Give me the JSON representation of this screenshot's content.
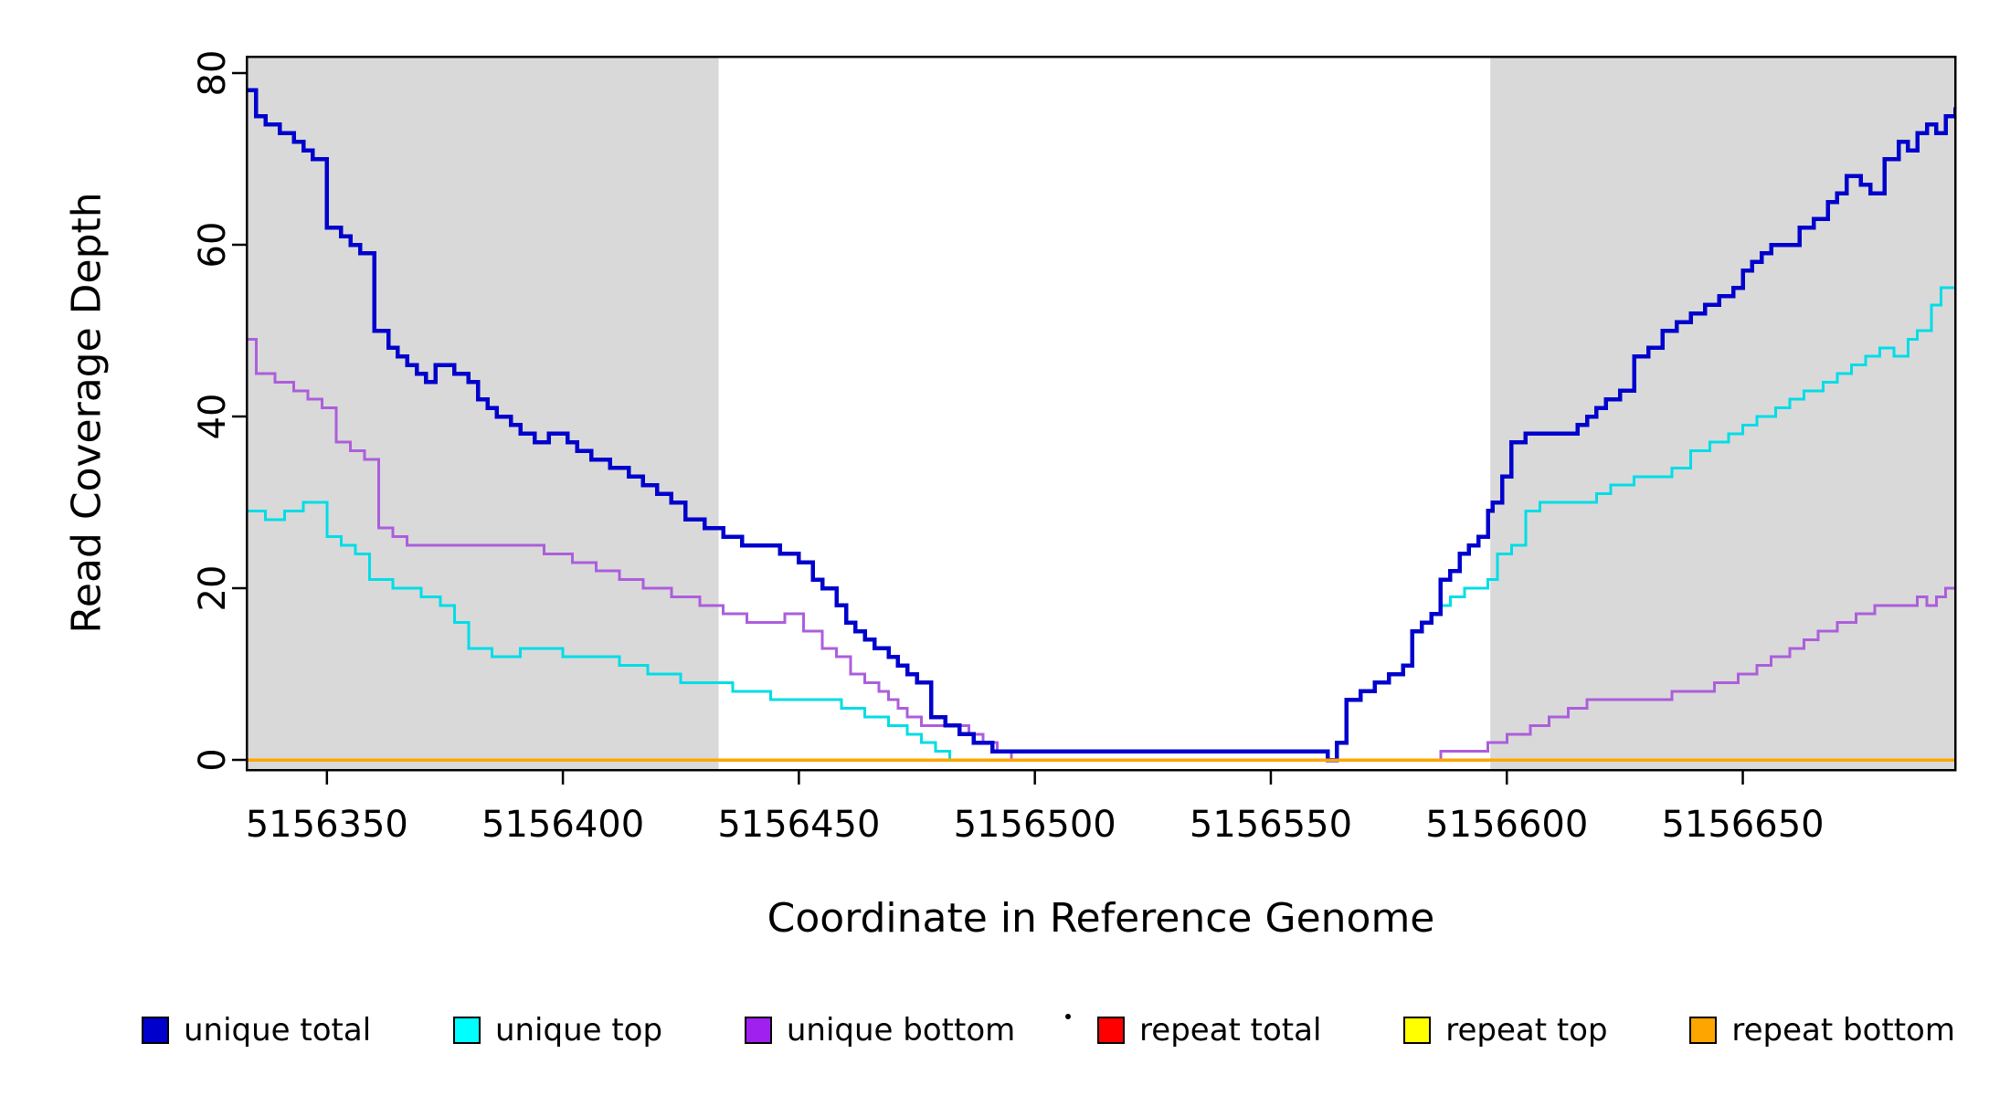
{
  "figure": {
    "background": "#FFFFFF",
    "shaded_color": "#D9D9D9",
    "box_color": "#000000",
    "stray_mark": "."
  },
  "axes": {
    "x": {
      "label": "Coordinate in Reference Genome",
      "ticks": [
        5156350,
        5156400,
        5156450,
        5156500,
        5156550,
        5156600,
        5156650
      ]
    },
    "y": {
      "label": "Read Coverage Depth",
      "ticks": [
        0,
        20,
        40,
        60,
        80
      ]
    }
  },
  "chart_data": {
    "type": "line",
    "step": true,
    "title": "",
    "xlabel": "Coordinate in Reference Genome",
    "ylabel": "Read Coverage Depth",
    "xlim": [
      5156333,
      5156695
    ],
    "ylim": [
      0,
      80
    ],
    "grid": false,
    "legend_position": "bottom",
    "shaded_regions": [
      {
        "from": 5156333,
        "to": 5156433
      },
      {
        "from": 5156596.5,
        "to": 5156695
      }
    ],
    "draw_order": [
      "repeat total",
      "repeat top",
      "unique bottom",
      "unique top",
      "unique total",
      "repeat bottom"
    ],
    "series": [
      {
        "name": "unique total",
        "color": "#0000CD",
        "width": 4.5,
        "points": [
          [
            5156333,
            78
          ],
          [
            5156335,
            75
          ],
          [
            5156337,
            74
          ],
          [
            5156340,
            73
          ],
          [
            5156343,
            72
          ],
          [
            5156345,
            71
          ],
          [
            5156347,
            70
          ],
          [
            5156350,
            62
          ],
          [
            5156353,
            61
          ],
          [
            5156355,
            60
          ],
          [
            5156357,
            59
          ],
          [
            5156360,
            50
          ],
          [
            5156363,
            48
          ],
          [
            5156365,
            47
          ],
          [
            5156367,
            46
          ],
          [
            5156369,
            45
          ],
          [
            5156371,
            44
          ],
          [
            5156373,
            46
          ],
          [
            5156377,
            45
          ],
          [
            5156380,
            44
          ],
          [
            5156382,
            42
          ],
          [
            5156384,
            41
          ],
          [
            5156386,
            40
          ],
          [
            5156389,
            39
          ],
          [
            5156391,
            38
          ],
          [
            5156394,
            37
          ],
          [
            5156397,
            38
          ],
          [
            5156401,
            37
          ],
          [
            5156403,
            36
          ],
          [
            5156406,
            35
          ],
          [
            5156410,
            34
          ],
          [
            5156414,
            33
          ],
          [
            5156417,
            32
          ],
          [
            5156420,
            31
          ],
          [
            5156423,
            30
          ],
          [
            5156426,
            28
          ],
          [
            5156430,
            27
          ],
          [
            5156434,
            26
          ],
          [
            5156438,
            25
          ],
          [
            5156446,
            24
          ],
          [
            5156450,
            23
          ],
          [
            5156453,
            21
          ],
          [
            5156455,
            20
          ],
          [
            5156458,
            18
          ],
          [
            5156460,
            16
          ],
          [
            5156462,
            15
          ],
          [
            5156464,
            14
          ],
          [
            5156466,
            13
          ],
          [
            5156469,
            12
          ],
          [
            5156471,
            11
          ],
          [
            5156473,
            10
          ],
          [
            5156475,
            9
          ],
          [
            5156478,
            5
          ],
          [
            5156481,
            4
          ],
          [
            5156484,
            3
          ],
          [
            5156487,
            2
          ],
          [
            5156491,
            1
          ],
          [
            5156562,
            0
          ],
          [
            5156564,
            2
          ],
          [
            5156566,
            7
          ],
          [
            5156569,
            8
          ],
          [
            5156572,
            9
          ],
          [
            5156575,
            10
          ],
          [
            5156578,
            11
          ],
          [
            5156580,
            15
          ],
          [
            5156582,
            16
          ],
          [
            5156584,
            17
          ],
          [
            5156586,
            21
          ],
          [
            5156588,
            22
          ],
          [
            5156590,
            24
          ],
          [
            5156592,
            25
          ],
          [
            5156594,
            26
          ],
          [
            5156596,
            29
          ],
          [
            5156597,
            30
          ],
          [
            5156599,
            33
          ],
          [
            5156601,
            37
          ],
          [
            5156604,
            38
          ],
          [
            5156615,
            39
          ],
          [
            5156617,
            40
          ],
          [
            5156619,
            41
          ],
          [
            5156621,
            42
          ],
          [
            5156624,
            43
          ],
          [
            5156627,
            47
          ],
          [
            5156630,
            48
          ],
          [
            5156633,
            50
          ],
          [
            5156636,
            51
          ],
          [
            5156639,
            52
          ],
          [
            5156642,
            53
          ],
          [
            5156645,
            54
          ],
          [
            5156648,
            55
          ],
          [
            5156650,
            57
          ],
          [
            5156652,
            58
          ],
          [
            5156654,
            59
          ],
          [
            5156656,
            60
          ],
          [
            5156662,
            62
          ],
          [
            5156665,
            63
          ],
          [
            5156668,
            65
          ],
          [
            5156670,
            66
          ],
          [
            5156672,
            68
          ],
          [
            5156675,
            67
          ],
          [
            5156677,
            66
          ],
          [
            5156680,
            70
          ],
          [
            5156683,
            72
          ],
          [
            5156685,
            71
          ],
          [
            5156687,
            73
          ],
          [
            5156689,
            74
          ],
          [
            5156691,
            73
          ],
          [
            5156693,
            75
          ],
          [
            5156695,
            76
          ]
        ]
      },
      {
        "name": "unique top",
        "color": "#00DDE6",
        "width": 3,
        "points": [
          [
            5156333,
            29
          ],
          [
            5156337,
            28
          ],
          [
            5156341,
            29
          ],
          [
            5156345,
            30
          ],
          [
            5156350,
            26
          ],
          [
            5156353,
            25
          ],
          [
            5156356,
            24
          ],
          [
            5156359,
            21
          ],
          [
            5156364,
            20
          ],
          [
            5156370,
            19
          ],
          [
            5156374,
            18
          ],
          [
            5156377,
            16
          ],
          [
            5156380,
            13
          ],
          [
            5156385,
            12
          ],
          [
            5156391,
            13
          ],
          [
            5156400,
            12
          ],
          [
            5156412,
            11
          ],
          [
            5156418,
            10
          ],
          [
            5156425,
            9
          ],
          [
            5156436,
            8
          ],
          [
            5156444,
            7
          ],
          [
            5156459,
            6
          ],
          [
            5156464,
            5
          ],
          [
            5156469,
            4
          ],
          [
            5156473,
            3
          ],
          [
            5156476,
            2
          ],
          [
            5156479,
            1
          ],
          [
            5156482,
            0
          ],
          [
            5156564,
            2
          ],
          [
            5156566,
            7
          ],
          [
            5156569,
            8
          ],
          [
            5156572,
            9
          ],
          [
            5156575,
            10
          ],
          [
            5156578,
            11
          ],
          [
            5156580,
            15
          ],
          [
            5156582,
            16
          ],
          [
            5156584,
            17
          ],
          [
            5156586,
            18
          ],
          [
            5156588,
            19
          ],
          [
            5156591,
            20
          ],
          [
            5156596,
            21
          ],
          [
            5156598,
            24
          ],
          [
            5156601,
            25
          ],
          [
            5156604,
            29
          ],
          [
            5156607,
            30
          ],
          [
            5156619,
            31
          ],
          [
            5156622,
            32
          ],
          [
            5156627,
            33
          ],
          [
            5156635,
            34
          ],
          [
            5156639,
            36
          ],
          [
            5156643,
            37
          ],
          [
            5156647,
            38
          ],
          [
            5156650,
            39
          ],
          [
            5156653,
            40
          ],
          [
            5156657,
            41
          ],
          [
            5156660,
            42
          ],
          [
            5156663,
            43
          ],
          [
            5156667,
            44
          ],
          [
            5156670,
            45
          ],
          [
            5156673,
            46
          ],
          [
            5156676,
            47
          ],
          [
            5156679,
            48
          ],
          [
            5156682,
            47
          ],
          [
            5156685,
            49
          ],
          [
            5156687,
            50
          ],
          [
            5156690,
            53
          ],
          [
            5156692,
            55
          ],
          [
            5156695,
            55
          ]
        ]
      },
      {
        "name": "unique bottom",
        "color": "#AC5EDB",
        "width": 3,
        "points": [
          [
            5156333,
            49
          ],
          [
            5156335,
            45
          ],
          [
            5156339,
            44
          ],
          [
            5156343,
            43
          ],
          [
            5156346,
            42
          ],
          [
            5156349,
            41
          ],
          [
            5156352,
            37
          ],
          [
            5156355,
            36
          ],
          [
            5156358,
            35
          ],
          [
            5156361,
            27
          ],
          [
            5156364,
            26
          ],
          [
            5156367,
            25
          ],
          [
            5156396,
            24
          ],
          [
            5156402,
            23
          ],
          [
            5156407,
            22
          ],
          [
            5156412,
            21
          ],
          [
            5156417,
            20
          ],
          [
            5156423,
            19
          ],
          [
            5156429,
            18
          ],
          [
            5156434,
            17
          ],
          [
            5156439,
            16
          ],
          [
            5156447,
            17
          ],
          [
            5156451,
            15
          ],
          [
            5156455,
            13
          ],
          [
            5156458,
            12
          ],
          [
            5156461,
            10
          ],
          [
            5156464,
            9
          ],
          [
            5156467,
            8
          ],
          [
            5156469,
            7
          ],
          [
            5156471,
            6
          ],
          [
            5156473,
            5
          ],
          [
            5156476,
            4
          ],
          [
            5156486,
            3
          ],
          [
            5156489,
            2
          ],
          [
            5156492,
            1
          ],
          [
            5156495,
            0
          ],
          [
            5156586,
            1
          ],
          [
            5156596,
            2
          ],
          [
            5156600,
            3
          ],
          [
            5156605,
            4
          ],
          [
            5156609,
            5
          ],
          [
            5156613,
            6
          ],
          [
            5156617,
            7
          ],
          [
            5156635,
            8
          ],
          [
            5156644,
            9
          ],
          [
            5156649,
            10
          ],
          [
            5156653,
            11
          ],
          [
            5156656,
            12
          ],
          [
            5156660,
            13
          ],
          [
            5156663,
            14
          ],
          [
            5156666,
            15
          ],
          [
            5156670,
            16
          ],
          [
            5156674,
            17
          ],
          [
            5156678,
            18
          ],
          [
            5156687,
            19
          ],
          [
            5156689,
            18
          ],
          [
            5156691,
            19
          ],
          [
            5156693,
            20
          ],
          [
            5156695,
            20
          ]
        ]
      },
      {
        "name": "repeat total",
        "color": "#FF0000",
        "width": 3,
        "points": [
          [
            5156333,
            0
          ],
          [
            5156695,
            0
          ]
        ]
      },
      {
        "name": "repeat top",
        "color": "#FFFF00",
        "width": 3,
        "points": [
          [
            5156333,
            0
          ],
          [
            5156695,
            0
          ]
        ]
      },
      {
        "name": "repeat bottom",
        "color": "#FFA500",
        "width": 3.5,
        "points": [
          [
            5156333,
            0
          ],
          [
            5156695,
            0
          ]
        ]
      }
    ]
  },
  "legend": {
    "items": [
      {
        "label": "unique total",
        "color": "#0000CD"
      },
      {
        "label": "unique top",
        "color": "#00FFFF"
      },
      {
        "label": "unique bottom",
        "color": "#A020F0"
      },
      {
        "label": "repeat total",
        "color": "#FF0000"
      },
      {
        "label": "repeat top",
        "color": "#FFFF00"
      },
      {
        "label": "repeat bottom",
        "color": "#FFA500"
      }
    ]
  }
}
